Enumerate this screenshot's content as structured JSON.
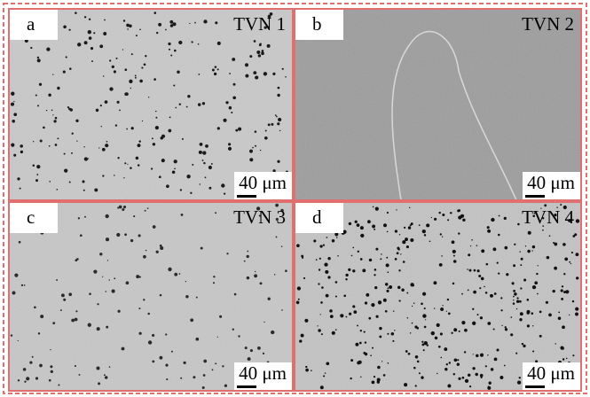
{
  "panels": [
    {
      "letter": "a",
      "title": "TVN 1",
      "scale": "40 μm"
    },
    {
      "letter": "b",
      "title": "TVN 2",
      "scale": "40 μm"
    },
    {
      "letter": "c",
      "title": "TVN 3",
      "scale": "40 μm"
    },
    {
      "letter": "d",
      "title": "TVN 4",
      "scale": "40 μm"
    }
  ]
}
